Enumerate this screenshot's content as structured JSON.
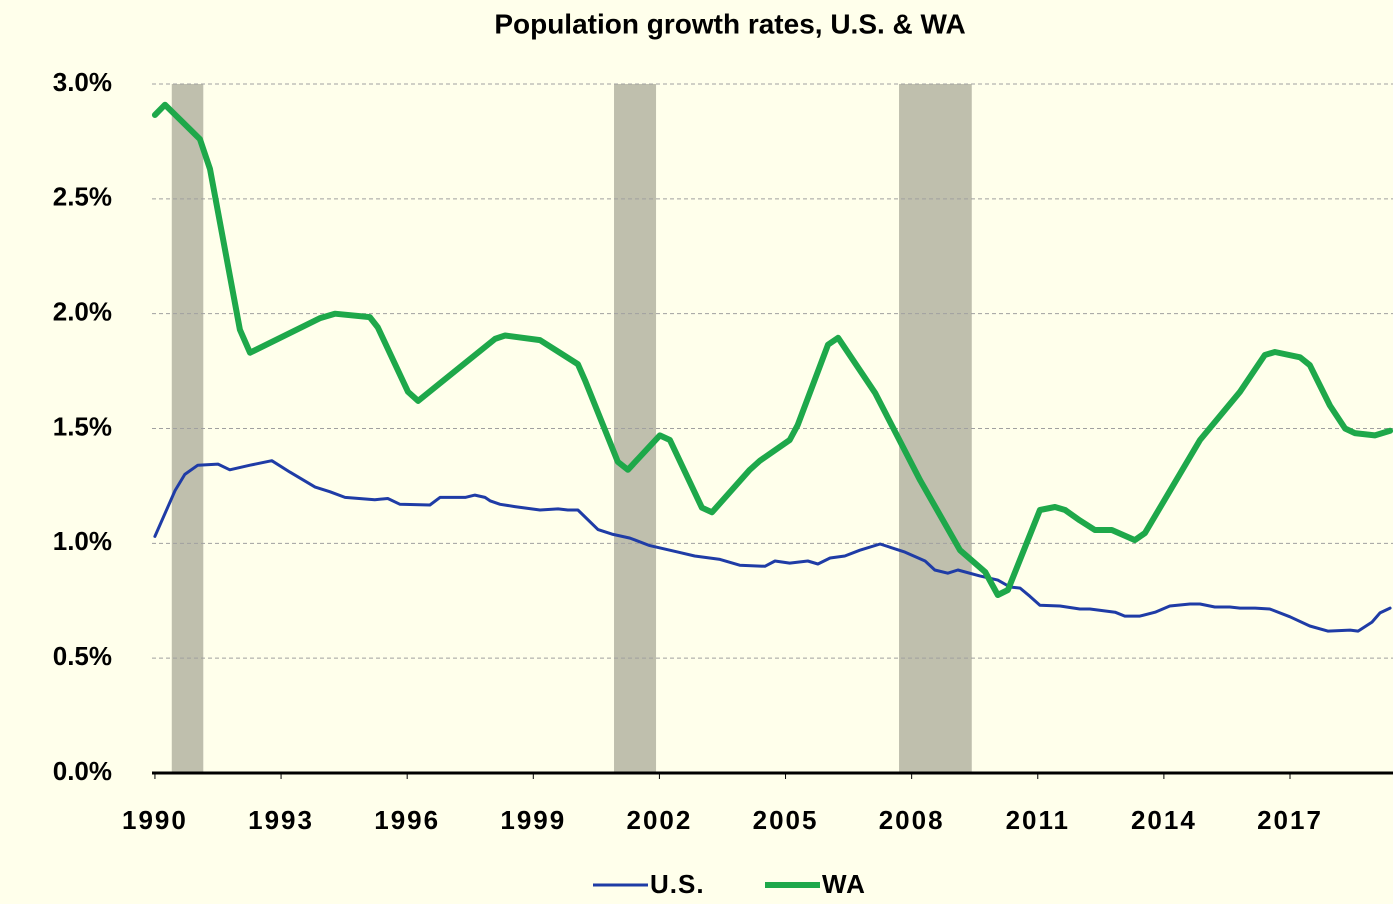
{
  "chart_data": {
    "type": "line",
    "title": "Population growth rates, U.S. & WA",
    "xlim": [
      1989.93,
      2019.45
    ],
    "xticks": [
      1990,
      1993,
      1996,
      1999,
      2002,
      2005,
      2008,
      2011,
      2014,
      2017
    ],
    "ylim": [
      0,
      3
    ],
    "yticks": [
      {
        "value": 0,
        "label": "0.0%"
      },
      {
        "value": 0.5,
        "label": "0.5%"
      },
      {
        "value": 1,
        "label": "1.0%"
      },
      {
        "value": 1.5,
        "label": "1.5%"
      },
      {
        "value": 2,
        "label": "2.0%"
      },
      {
        "value": 2.5,
        "label": "2.5%"
      },
      {
        "value": 3,
        "label": "3.0%"
      }
    ],
    "grid": true,
    "legend": "bottom",
    "shaded_periods": [
      {
        "start": 1990.4,
        "end": 1991.15
      },
      {
        "start": 2000.92,
        "end": 2001.92
      },
      {
        "start": 2007.7,
        "end": 2009.43
      }
    ],
    "shade_color": "#bfbfad",
    "series": [
      {
        "name": "U.S.",
        "color": "#1f3ca6",
        "width": 3,
        "x": [
          1990.0,
          1990.48,
          1990.71,
          1991.02,
          1991.5,
          1991.78,
          1992.26,
          1992.78,
          1993.21,
          1993.81,
          1994.16,
          1994.52,
          1995.23,
          1995.54,
          1995.83,
          1996.54,
          1996.78,
          1997.38,
          1997.61,
          1997.85,
          1997.97,
          1998.21,
          1998.56,
          1999.16,
          1999.59,
          1999.82,
          2000.06,
          2000.54,
          2000.87,
          2001.3,
          2001.77,
          2002.13,
          2002.44,
          2002.84,
          2003.44,
          2003.91,
          2004.51,
          2004.75,
          2005.1,
          2005.53,
          2005.77,
          2006.06,
          2006.41,
          2006.77,
          2007.25,
          2007.84,
          2008.32,
          2008.55,
          2008.86,
          2009.1,
          2009.62,
          2010.05,
          2010.34,
          2010.58,
          2010.81,
          2011.05,
          2011.53,
          2012.0,
          2012.24,
          2012.84,
          2013.07,
          2013.43,
          2013.79,
          2014.14,
          2014.62,
          2014.86,
          2015.21,
          2015.57,
          2015.81,
          2016.17,
          2016.52,
          2017.0,
          2017.47,
          2017.9,
          2018.43,
          2018.62,
          2018.95,
          2019.14,
          2019.38
        ],
        "values": [
          1.03,
          1.23,
          1.3,
          1.34,
          1.345,
          1.32,
          1.34,
          1.36,
          1.31,
          1.245,
          1.225,
          1.2,
          1.19,
          1.195,
          1.17,
          1.167,
          1.2,
          1.2,
          1.21,
          1.2,
          1.185,
          1.17,
          1.16,
          1.145,
          1.15,
          1.145,
          1.145,
          1.06,
          1.04,
          1.023,
          0.99,
          0.975,
          0.962,
          0.945,
          0.93,
          0.905,
          0.9,
          0.923,
          0.914,
          0.923,
          0.91,
          0.936,
          0.945,
          0.97,
          0.997,
          0.962,
          0.923,
          0.884,
          0.87,
          0.884,
          0.858,
          0.84,
          0.81,
          0.805,
          0.77,
          0.73,
          0.727,
          0.714,
          0.714,
          0.7,
          0.683,
          0.683,
          0.7,
          0.727,
          0.736,
          0.736,
          0.723,
          0.723,
          0.718,
          0.718,
          0.714,
          0.68,
          0.64,
          0.618,
          0.622,
          0.618,
          0.657,
          0.697,
          0.718
        ]
      },
      {
        "name": "WA",
        "color": "#1ea84a",
        "width": 6,
        "x": [
          1990.0,
          1990.24,
          1991.07,
          1991.31,
          1992.02,
          1992.26,
          1993.92,
          1994.28,
          1995.11,
          1995.3,
          1996.02,
          1996.26,
          1998.09,
          1998.33,
          1999.16,
          1999.63,
          2000.06,
          2000.23,
          2001.01,
          2001.25,
          2002.01,
          2002.25,
          2003.01,
          2003.25,
          2004.15,
          2004.39,
          2005.1,
          2005.29,
          2006.01,
          2006.25,
          2007.13,
          2008.2,
          2009.15,
          2009.75,
          2010.05,
          2010.29,
          2011.05,
          2011.41,
          2011.65,
          2012.0,
          2012.36,
          2012.76,
          2013.31,
          2013.55,
          2014.86,
          2015.81,
          2016.4,
          2016.64,
          2017.24,
          2017.47,
          2017.95,
          2018.31,
          2018.54,
          2019.02,
          2019.38
        ],
        "values": [
          2.865,
          2.91,
          2.76,
          2.63,
          1.93,
          1.83,
          1.98,
          2.0,
          1.985,
          1.94,
          1.66,
          1.62,
          1.89,
          1.905,
          1.885,
          1.83,
          1.78,
          1.71,
          1.355,
          1.32,
          1.47,
          1.45,
          1.155,
          1.135,
          1.32,
          1.36,
          1.45,
          1.515,
          1.865,
          1.895,
          1.655,
          1.275,
          0.97,
          0.875,
          0.775,
          0.797,
          1.145,
          1.158,
          1.145,
          1.1,
          1.058,
          1.058,
          1.014,
          1.045,
          1.45,
          1.66,
          1.82,
          1.833,
          1.81,
          1.776,
          1.6,
          1.5,
          1.48,
          1.47,
          1.49
        ]
      }
    ]
  }
}
